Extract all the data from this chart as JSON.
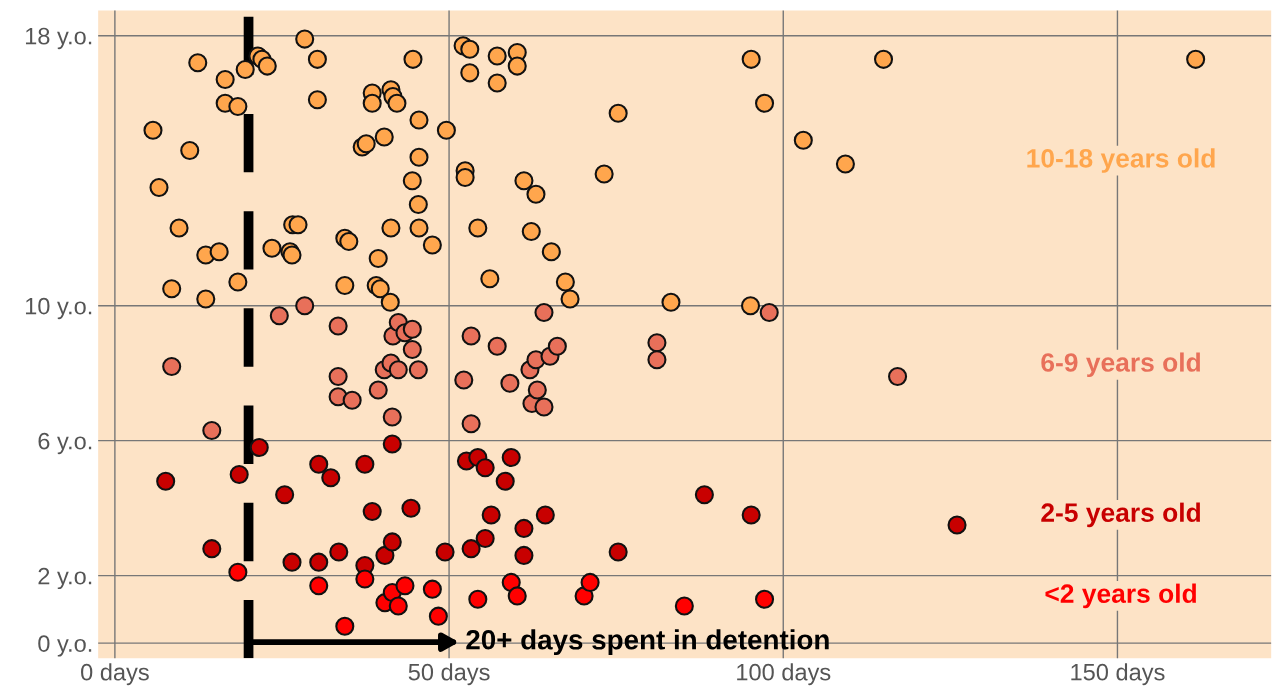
{
  "chart_data": {
    "type": "scatter",
    "xlim": [
      -2.5,
      173
    ],
    "ylim": [
      -0.45,
      18.75
    ],
    "xticks": [
      {
        "value": 0,
        "label": "0 days"
      },
      {
        "value": 50,
        "label": "50 days"
      },
      {
        "value": 100,
        "label": "100 days"
      },
      {
        "value": 150,
        "label": "150 days"
      }
    ],
    "yticks": [
      {
        "value": 0,
        "label": "0 y.o."
      },
      {
        "value": 2,
        "label": "2 y.o."
      },
      {
        "value": 6,
        "label": "6 y.o."
      },
      {
        "value": 10,
        "label": "10 y.o."
      },
      {
        "value": 18,
        "label": "18 y.o."
      }
    ],
    "grid": true,
    "legend": false,
    "marker": "circle",
    "ref_lines": [
      {
        "axis": "x",
        "value": 20,
        "color": "#000000",
        "line_style": "dashed"
      }
    ],
    "annotations": [
      "20+ days spent in detention"
    ],
    "series": [
      {
        "name": "10-18 years old",
        "color": "#ffa64d",
        "x": [
          5.7,
          6.6,
          9.6,
          8.5,
          11.2,
          12.4,
          13.6,
          13.6,
          15.6,
          16.5,
          16.5,
          18.4,
          18.4,
          19.5,
          21.4,
          22.0,
          22.8,
          23.5,
          26.2,
          26.6,
          27.4,
          26.5,
          28.4,
          30.3,
          30.3,
          34.4,
          35.0,
          34.4,
          37.0,
          37.6,
          38.5,
          38.5,
          40.3,
          39.4,
          39.1,
          39.7,
          41.3,
          41.6,
          42.2,
          41.3,
          41.2,
          44.6,
          45.5,
          45.5,
          45.4,
          45.5,
          44.5,
          47.5,
          49.6,
          52.1,
          53.1,
          53.1,
          52.4,
          52.4,
          54.3,
          57.2,
          60.2,
          60.2,
          57.2,
          61.2,
          56.1,
          62.3,
          65.3,
          67.4,
          68.1,
          63.0,
          73.2,
          75.3,
          83.2,
          95.2,
          97.2,
          95.1,
          103.0,
          109.3,
          115.0,
          161.7
        ],
        "values": [
          15.2,
          13.5,
          12.3,
          10.5,
          14.6,
          17.2,
          11.5,
          10.2,
          11.6,
          16.7,
          16.0,
          15.9,
          10.7,
          17.0,
          17.4,
          17.3,
          17.1,
          11.7,
          11.6,
          12.4,
          12.4,
          11.5,
          17.9,
          17.3,
          16.1,
          12.0,
          11.9,
          10.6,
          14.7,
          14.8,
          16.3,
          16.0,
          15.0,
          11.4,
          10.6,
          10.5,
          16.4,
          16.2,
          16.0,
          12.3,
          10.1,
          17.3,
          15.5,
          14.4,
          13.0,
          12.3,
          13.7,
          11.8,
          15.2,
          17.7,
          17.6,
          16.9,
          14.0,
          13.8,
          12.3,
          17.4,
          17.5,
          17.1,
          16.6,
          13.7,
          10.8,
          12.2,
          11.6,
          10.7,
          10.2,
          13.3,
          13.9,
          15.7,
          10.1,
          17.3,
          16.0,
          10.0,
          14.9,
          14.2,
          17.3,
          17.3
        ]
      },
      {
        "name": "6-9 years old",
        "color": "#e8705a",
        "x": [
          8.5,
          14.5,
          24.6,
          28.4,
          33.4,
          33.4,
          33.4,
          35.5,
          39.4,
          40.3,
          41.3,
          42.4,
          41.5,
          41.6,
          42.4,
          43.4,
          44.5,
          44.5,
          45.4,
          53.3,
          52.2,
          53.3,
          57.2,
          59.1,
          62.1,
          63.0,
          62.4,
          63.2,
          64.2,
          65.1,
          66.2,
          64.2,
          81.1,
          81.1,
          97.9,
          117.1
        ],
        "values": [
          8.2,
          6.3,
          9.7,
          10.0,
          9.4,
          7.9,
          7.3,
          7.2,
          7.5,
          8.1,
          8.3,
          8.1,
          6.7,
          9.1,
          9.5,
          9.2,
          9.3,
          8.7,
          8.1,
          9.1,
          7.8,
          6.5,
          8.8,
          7.7,
          8.1,
          8.4,
          7.1,
          7.5,
          7.0,
          8.5,
          8.8,
          9.8,
          8.9,
          8.4,
          9.8,
          7.9
        ]
      },
      {
        "name": "2-5 years old",
        "color": "#c80000",
        "x": [
          7.6,
          14.5,
          18.6,
          21.6,
          25.4,
          26.5,
          30.5,
          32.3,
          30.5,
          33.5,
          37.4,
          38.5,
          37.4,
          40.4,
          41.5,
          41.5,
          44.3,
          49.4,
          52.6,
          54.3,
          55.4,
          53.3,
          55.4,
          56.3,
          58.4,
          59.3,
          61.2,
          61.2,
          64.4,
          75.3,
          88.2,
          95.2,
          126.0
        ],
        "values": [
          4.8,
          2.8,
          5.0,
          5.8,
          4.4,
          2.4,
          5.3,
          4.9,
          2.4,
          2.7,
          5.3,
          3.9,
          2.3,
          2.6,
          3.0,
          5.9,
          4.0,
          2.7,
          5.4,
          5.5,
          5.2,
          2.8,
          3.1,
          3.8,
          4.8,
          5.5,
          3.4,
          2.6,
          3.8,
          2.7,
          4.4,
          3.8,
          3.5
        ]
      },
      {
        "name": "<2 years old",
        "color": "#ff0000",
        "x": [
          18.4,
          30.5,
          34.4,
          37.4,
          40.4,
          41.5,
          42.4,
          43.4,
          47.5,
          48.4,
          54.3,
          59.3,
          60.2,
          70.2,
          71.1,
          85.2,
          97.2
        ],
        "values": [
          2.1,
          1.7,
          0.5,
          1.9,
          1.2,
          1.5,
          1.1,
          1.7,
          1.6,
          0.8,
          1.3,
          1.8,
          1.4,
          1.4,
          1.8,
          1.1,
          1.3
        ]
      }
    ]
  }
}
